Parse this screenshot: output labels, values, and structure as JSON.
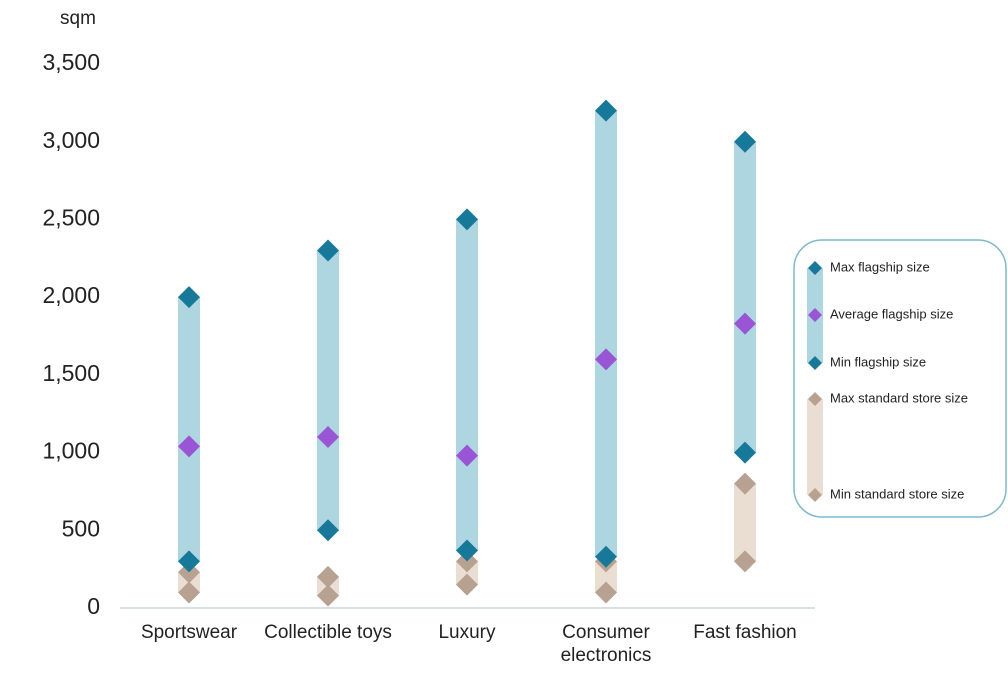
{
  "chart_data": {
    "type": "range-dot",
    "y_label": "sqm",
    "categories": [
      "Sportswear",
      "Collectible toys",
      "Luxury",
      "Consumer electronics",
      "Fast fashion"
    ],
    "series": [
      {
        "name": "Max flagship size",
        "color": "#17799a",
        "values": [
          2000,
          2300,
          2500,
          3200,
          3000
        ]
      },
      {
        "name": "Average flagship size",
        "color": "#9a55d6",
        "values": [
          1040,
          1100,
          980,
          1600,
          1830
        ]
      },
      {
        "name": "Min flagship size",
        "color": "#17799a",
        "values": [
          300,
          500,
          370,
          330,
          1000
        ]
      },
      {
        "name": "Max standard store size",
        "color": "#b7a292",
        "values": [
          230,
          200,
          300,
          300,
          800
        ]
      },
      {
        "name": "Min standard store size",
        "color": "#b7a292",
        "values": [
          100,
          80,
          150,
          100,
          300
        ]
      }
    ],
    "flagship_band_color": "#aed6e1",
    "standard_band_color": "#eaddd2",
    "ylim": [
      0,
      3500
    ],
    "yticks": [
      0,
      500,
      {
        "value": 1000,
        "label": "1,000"
      },
      {
        "value": 1500,
        "label": "1,500"
      },
      {
        "value": 2000,
        "label": "2,000"
      },
      {
        "value": 2500,
        "label": "2,500"
      },
      {
        "value": 3000,
        "label": "3,000"
      },
      {
        "value": 3500,
        "label": "3,500"
      }
    ],
    "grid": false,
    "legend": "right"
  }
}
